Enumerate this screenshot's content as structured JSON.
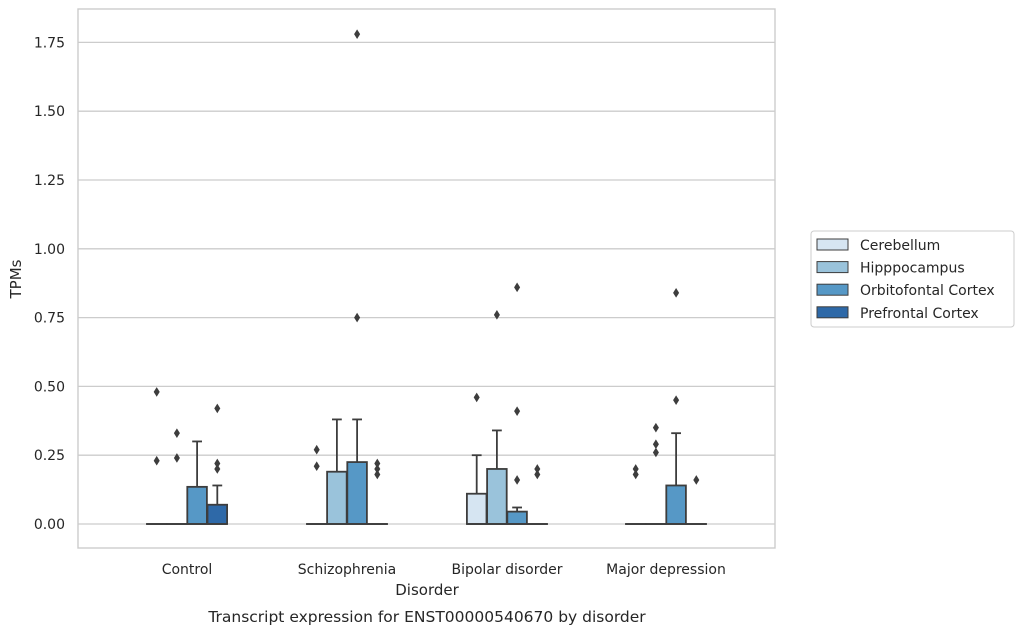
{
  "caption": "Transcript expression for ENST00000540670 by disorder",
  "chart_data": {
    "type": "box",
    "title": "",
    "xlabel": "Disorder",
    "ylabel": "TPMs",
    "ylim": [
      -0.085,
      1.87
    ],
    "yticks": [
      "0.00",
      "0.25",
      "0.50",
      "0.75",
      "1.00",
      "1.25",
      "1.50",
      "1.75"
    ],
    "ytick_values": [
      0,
      0.25,
      0.5,
      0.75,
      1.0,
      1.25,
      1.5,
      1.75
    ],
    "grid": "horizontal",
    "legend_position": "right",
    "categories": [
      "Control",
      "Schizophrenia",
      "Bipolar disorder",
      "Major depression"
    ],
    "series": [
      {
        "name": "Cerebellum",
        "color": "#d6e5f2",
        "boxes": [
          {
            "q1": 0,
            "median": 0,
            "q3": 0,
            "whisker_low": 0,
            "whisker_high": 0,
            "outliers": [
              0.23,
              0.48
            ]
          },
          {
            "q1": 0,
            "median": 0,
            "q3": 0,
            "whisker_low": 0,
            "whisker_high": 0,
            "outliers": [
              0.21,
              0.27
            ]
          },
          {
            "q1": 0,
            "median": 0,
            "q3": 0.11,
            "whisker_low": 0,
            "whisker_high": 0.25,
            "outliers": [
              0.46
            ]
          },
          {
            "q1": 0,
            "median": 0,
            "q3": 0,
            "whisker_low": 0,
            "whisker_high": 0,
            "outliers": [
              0.18,
              0.2
            ]
          }
        ]
      },
      {
        "name": "Hipppocampus",
        "color": "#9ac3db",
        "boxes": [
          {
            "q1": 0,
            "median": 0,
            "q3": 0,
            "whisker_low": 0,
            "whisker_high": 0,
            "outliers": [
              0.24,
              0.33
            ]
          },
          {
            "q1": 0,
            "median": 0,
            "q3": 0.19,
            "whisker_low": 0,
            "whisker_high": 0.38,
            "outliers": []
          },
          {
            "q1": 0,
            "median": 0,
            "q3": 0.2,
            "whisker_low": 0,
            "whisker_high": 0.34,
            "outliers": [
              0.76
            ]
          },
          {
            "q1": 0,
            "median": 0,
            "q3": 0,
            "whisker_low": 0,
            "whisker_high": 0,
            "outliers": [
              0.26,
              0.29,
              0.35
            ]
          }
        ]
      },
      {
        "name": "Orbitofontal Cortex",
        "color": "#5698c6",
        "boxes": [
          {
            "q1": 0,
            "median": 0,
            "q3": 0.135,
            "whisker_low": 0,
            "whisker_high": 0.3,
            "outliers": []
          },
          {
            "q1": 0,
            "median": 0,
            "q3": 0.225,
            "whisker_low": 0,
            "whisker_high": 0.38,
            "outliers": [
              0.75,
              1.78
            ]
          },
          {
            "q1": 0,
            "median": 0,
            "q3": 0.045,
            "whisker_low": 0,
            "whisker_high": 0.06,
            "outliers": [
              0.16,
              0.41,
              0.86
            ]
          },
          {
            "q1": 0,
            "median": 0,
            "q3": 0.14,
            "whisker_low": 0,
            "whisker_high": 0.33,
            "outliers": [
              0.45,
              0.84
            ]
          }
        ]
      },
      {
        "name": "Prefrontal Cortex",
        "color": "#2e69a8",
        "boxes": [
          {
            "q1": 0,
            "median": 0,
            "q3": 0.07,
            "whisker_low": 0,
            "whisker_high": 0.14,
            "outliers": [
              0.2,
              0.22,
              0.42
            ]
          },
          {
            "q1": 0,
            "median": 0,
            "q3": 0,
            "whisker_low": 0,
            "whisker_high": 0,
            "outliers": [
              0.18,
              0.2,
              0.22
            ]
          },
          {
            "q1": 0,
            "median": 0,
            "q3": 0,
            "whisker_low": 0,
            "whisker_high": 0,
            "outliers": [
              0.18,
              0.2
            ]
          },
          {
            "q1": 0,
            "median": 0,
            "q3": 0,
            "whisker_low": 0,
            "whisker_high": 0,
            "outliers": [
              0.16
            ]
          }
        ]
      }
    ]
  }
}
